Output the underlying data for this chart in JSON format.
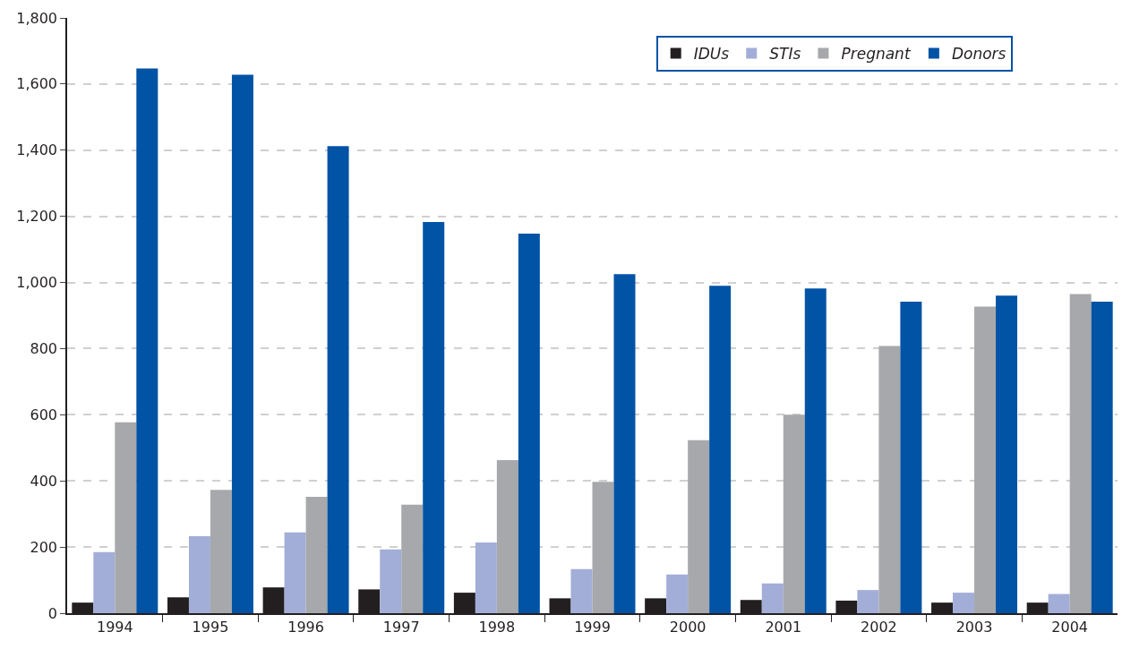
{
  "chart_data": {
    "type": "bar",
    "categories": [
      "1994",
      "1995",
      "1996",
      "1997",
      "1998",
      "1999",
      "2000",
      "2001",
      "2002",
      "2003",
      "2004"
    ],
    "series": [
      {
        "name": "IDUs",
        "color": "#231f20",
        "values": [
          32,
          48,
          78,
          72,
          62,
          45,
          45,
          40,
          38,
          32,
          32
        ]
      },
      {
        "name": "STIs",
        "color": "#a2aed8",
        "values": [
          185,
          233,
          244,
          193,
          214,
          133,
          117,
          90,
          70,
          62,
          58
        ]
      },
      {
        "name": "Pregnant",
        "color": "#a7a8ab",
        "values": [
          577,
          373,
          352,
          328,
          463,
          397,
          523,
          600,
          808,
          927,
          965
        ]
      },
      {
        "name": "Donors",
        "color": "#0053a5",
        "values": [
          1647,
          1628,
          1412,
          1183,
          1148,
          1025,
          990,
          982,
          942,
          960,
          942
        ]
      }
    ],
    "ylim": [
      0,
      1800
    ],
    "yticks": [
      0,
      {
        "value": 200,
        "label": "200"
      },
      {
        "value": 400,
        "label": "400"
      },
      {
        "value": 600,
        "label": "600"
      },
      {
        "value": 800,
        "label": "800"
      },
      {
        "value": 1000,
        "label": "1,000"
      },
      {
        "value": 1200,
        "label": "1,200"
      },
      {
        "value": 1400,
        "label": "1,400"
      },
      {
        "value": 1600,
        "label": "1,600"
      },
      {
        "value": 1800,
        "label": "1,800"
      }
    ],
    "grid": "y",
    "legend": "top right"
  }
}
